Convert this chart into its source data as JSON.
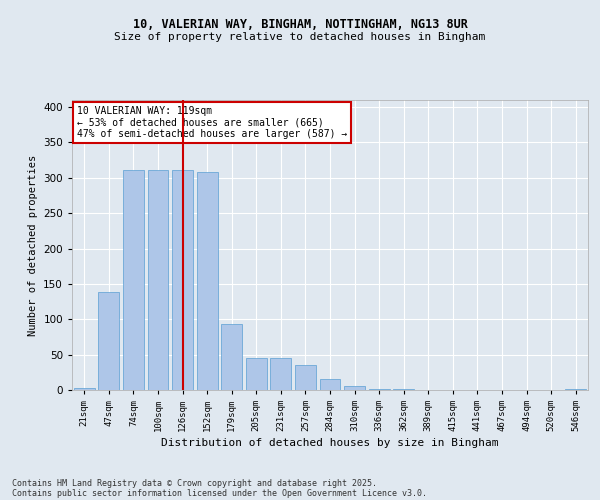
{
  "title1": "10, VALERIAN WAY, BINGHAM, NOTTINGHAM, NG13 8UR",
  "title2": "Size of property relative to detached houses in Bingham",
  "xlabel": "Distribution of detached houses by size in Bingham",
  "ylabel": "Number of detached properties",
  "categories": [
    "21sqm",
    "47sqm",
    "74sqm",
    "100sqm",
    "126sqm",
    "152sqm",
    "179sqm",
    "205sqm",
    "231sqm",
    "257sqm",
    "284sqm",
    "310sqm",
    "336sqm",
    "362sqm",
    "389sqm",
    "415sqm",
    "441sqm",
    "467sqm",
    "494sqm",
    "520sqm",
    "546sqm"
  ],
  "values": [
    3,
    139,
    311,
    311,
    311,
    308,
    93,
    45,
    45,
    35,
    15,
    5,
    1,
    1,
    0,
    0,
    0,
    0,
    0,
    0,
    2
  ],
  "bar_color": "#aec6e8",
  "bar_edge_color": "#5a9fd4",
  "vline_x_index": 4,
  "vline_color": "#cc0000",
  "annotation_text_line1": "10 VALERIAN WAY: 119sqm",
  "annotation_text_line2": "← 53% of detached houses are smaller (665)",
  "annotation_text_line3": "47% of semi-detached houses are larger (587) →",
  "annotation_box_color": "#ffffff",
  "annotation_box_edge": "#cc0000",
  "background_color": "#e0e8f0",
  "grid_color": "#ffffff",
  "footer1": "Contains HM Land Registry data © Crown copyright and database right 2025.",
  "footer2": "Contains public sector information licensed under the Open Government Licence v3.0.",
  "ylim": [
    0,
    410
  ],
  "yticks": [
    0,
    50,
    100,
    150,
    200,
    250,
    300,
    350,
    400
  ]
}
